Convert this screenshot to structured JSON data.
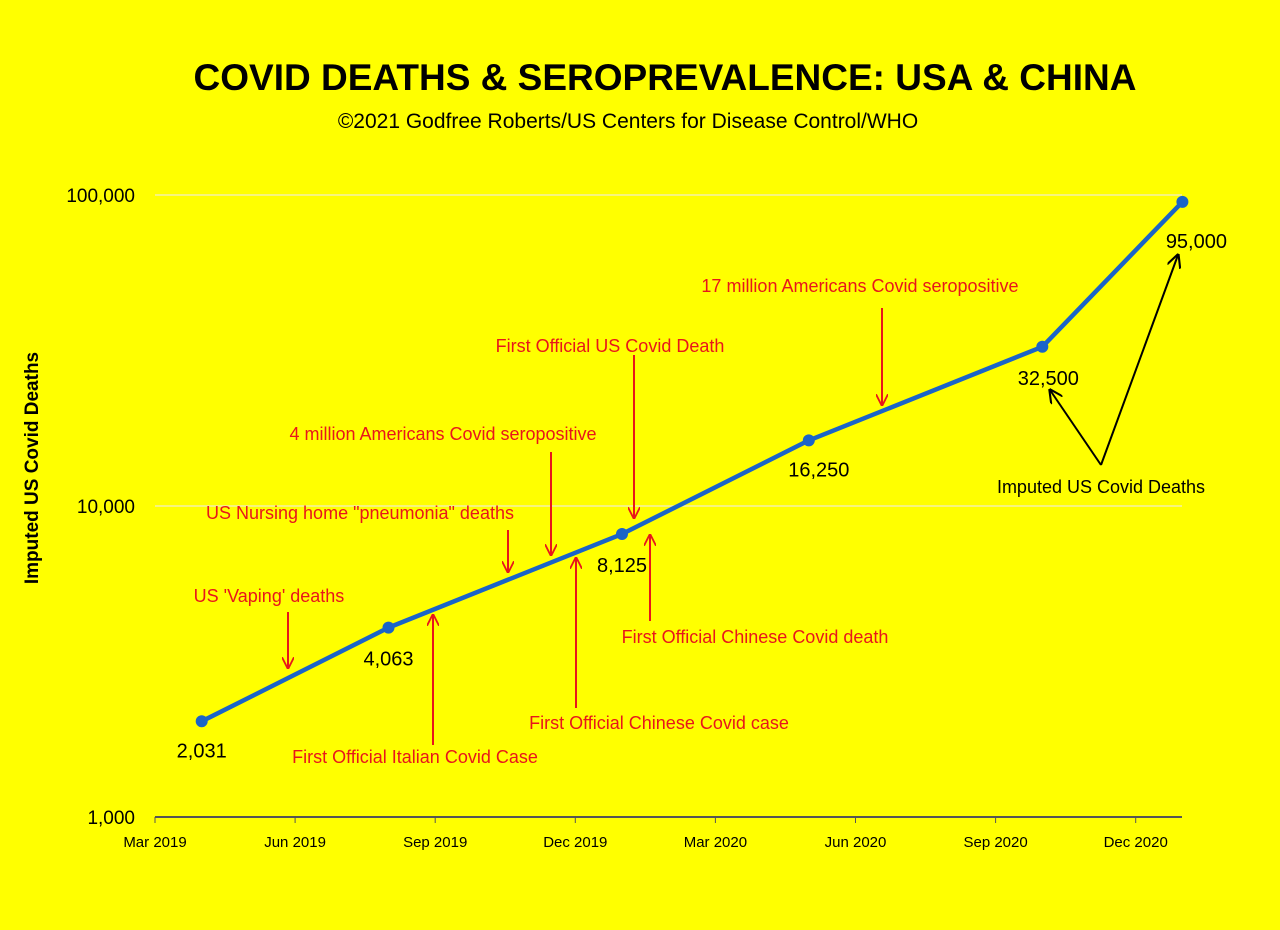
{
  "chart_data": {
    "type": "line",
    "title": "COVID DEATHS & SEROPREVALENCE: USA & CHINA",
    "subtitle": "©2021 Godfree Roberts/US Centers for Disease Control/WHO",
    "xlabel": "",
    "ylabel": "Imputed US Covid Deaths",
    "yscale": "log",
    "ylim": [
      1000,
      100000
    ],
    "y_ticks": [
      1000,
      10000,
      100000
    ],
    "y_tick_labels": [
      "1,000",
      "10,000",
      "100,000"
    ],
    "x_ticks": [
      "Mar 2019",
      "Jun 2019",
      "Sep 2019",
      "Dec 2019",
      "Mar 2020",
      "Jun 2020",
      "Sep 2020",
      "Dec 2020"
    ],
    "x_unit": "months since Mar 2019",
    "xlim": [
      0,
      22
    ],
    "grid": "horizontal",
    "series": [
      {
        "name": "Imputed US Covid Deaths",
        "color": "#1a64c8",
        "x": [
          "Apr 2019",
          "Aug 2019",
          "Jan 2020",
          "May 2020",
          "Oct 2020",
          "Jan 2021"
        ],
        "x_months": [
          1,
          5,
          10,
          14,
          19,
          22
        ],
        "values": [
          2031,
          4063,
          8125,
          16250,
          32500,
          95000
        ],
        "labels": [
          "2,031",
          "4,063",
          "8,125",
          "16,250",
          "32,500",
          "95,000"
        ]
      }
    ],
    "annotations": [
      "17 million Americans Covid seropositive",
      "First Official US Covid Death",
      "4 million  Americans Covid seropositive",
      "US Nursing home \"pneumonia\" deaths",
      "US 'Vaping' deaths",
      "First Official Italian Covid Case",
      "First Official Chinese Covid case",
      "First Official Chinese Covid death",
      "Imputed US Covid Deaths"
    ],
    "annotation_color": "#e8161b",
    "background": "#ffff00"
  }
}
